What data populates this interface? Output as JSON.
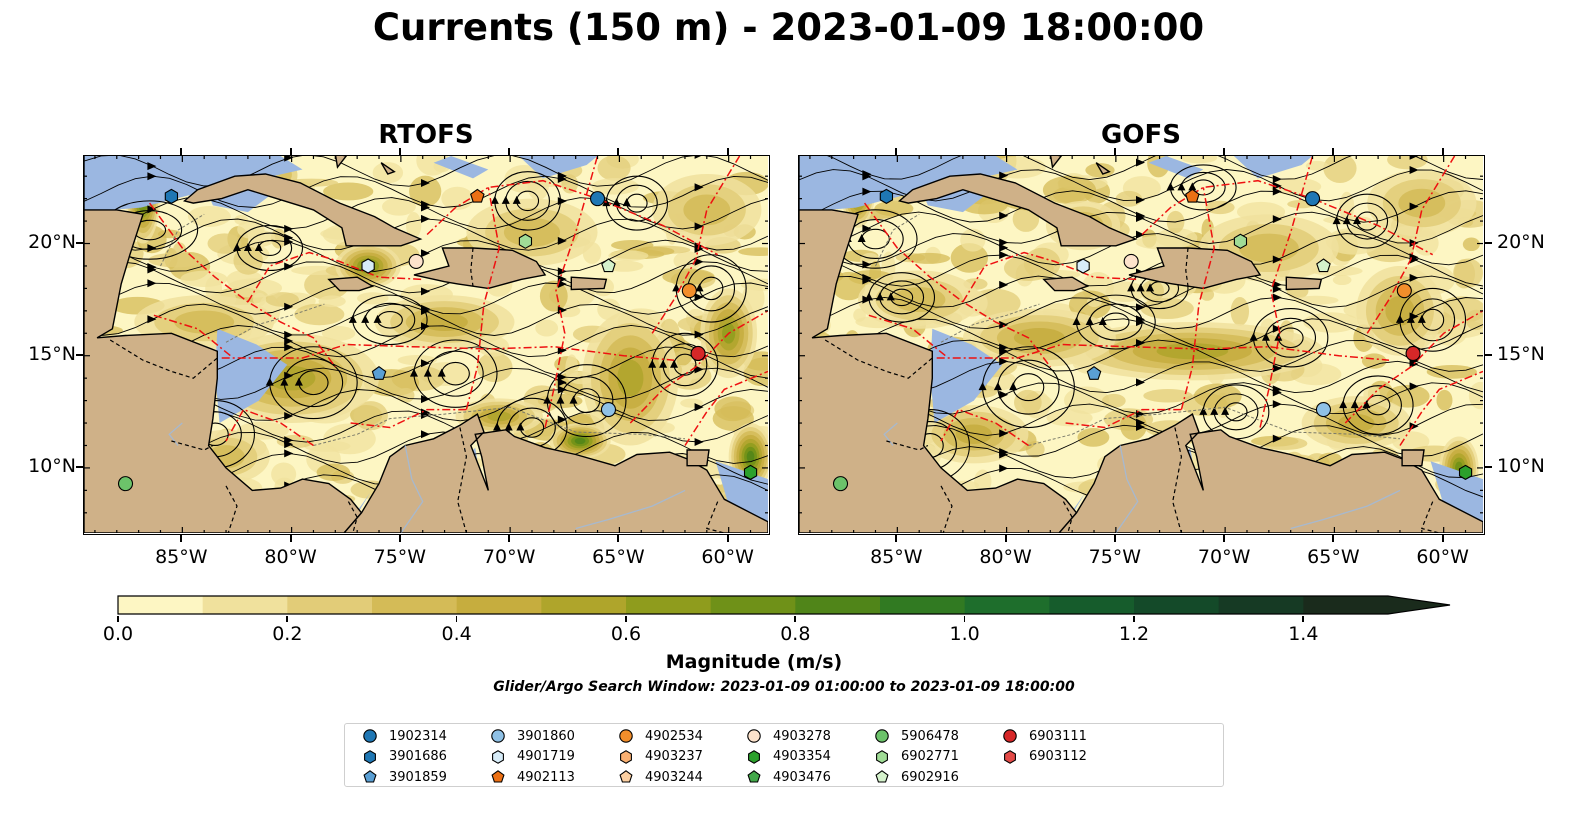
{
  "title": "Currents (150 m) - 2023-01-09 18:00:00",
  "panels": [
    {
      "title": "RTOFS"
    },
    {
      "title": "GOFS"
    }
  ],
  "axes": {
    "lon_labels": [
      "85°W",
      "80°W",
      "75°W",
      "70°W",
      "65°W",
      "60°W"
    ],
    "lat_labels": [
      "20°N",
      "15°N",
      "10°N"
    ],
    "lon_values": [
      -85,
      -80,
      -75,
      -70,
      -65,
      -60
    ],
    "lat_values": [
      20,
      15,
      10
    ],
    "lon_range": [
      -89.5,
      -58.2
    ],
    "lat_range": [
      7.1,
      23.9
    ]
  },
  "colorbar": {
    "label": "Magnitude (m/s)",
    "ticks": [
      "0.0",
      "0.2",
      "0.4",
      "0.6",
      "0.8",
      "1.0",
      "1.2",
      "1.4"
    ],
    "tick_values": [
      0.0,
      0.2,
      0.4,
      0.6,
      0.8,
      1.0,
      1.2,
      1.4
    ],
    "range": [
      0.0,
      1.5
    ],
    "extend": "max",
    "colors": [
      "#fdf6c3",
      "#f0e19d",
      "#e2cc78",
      "#d4bb57",
      "#c6ad3e",
      "#afa52b",
      "#8f9c1d",
      "#6f9118",
      "#508519",
      "#317a22",
      "#1e6e2c",
      "#165c2c",
      "#144a29",
      "#163a24",
      "#1a2b1c"
    ]
  },
  "search_window": "Glider/Argo Search Window: 2023-01-09 01:00:00 to 2023-01-09 18:00:00",
  "colors": {
    "land": "#cfb188",
    "ocean_shallow": "#9bb7e1",
    "eez_line": "#ee1111"
  },
  "legend": [
    {
      "id": "1902314",
      "color": "#1f77b4",
      "marker": "circle"
    },
    {
      "id": "3901686",
      "color": "#1f77b4",
      "marker": "hexagon"
    },
    {
      "id": "3901859",
      "color": "#5a9fd4",
      "marker": "pentagon"
    },
    {
      "id": "3901860",
      "color": "#8fc1e6",
      "marker": "circle"
    },
    {
      "id": "4901719",
      "color": "#d7ecf8",
      "marker": "hexagon"
    },
    {
      "id": "4902113",
      "color": "#ec7014",
      "marker": "pentagon"
    },
    {
      "id": "4902534",
      "color": "#f28e2b",
      "marker": "circle"
    },
    {
      "id": "4903237",
      "color": "#f9b072",
      "marker": "hexagon"
    },
    {
      "id": "4903244",
      "color": "#fdd0a2",
      "marker": "pentagon"
    },
    {
      "id": "4903278",
      "color": "#fde3cc",
      "marker": "circle"
    },
    {
      "id": "4903354",
      "color": "#2ca02c",
      "marker": "hexagon"
    },
    {
      "id": "4903476",
      "color": "#43a84a",
      "marker": "pentagon"
    },
    {
      "id": "5906478",
      "color": "#6cc36a",
      "marker": "circle"
    },
    {
      "id": "6902771",
      "color": "#a0dc96",
      "marker": "hexagon"
    },
    {
      "id": "6902916",
      "color": "#d5f2cc",
      "marker": "pentagon"
    },
    {
      "id": "6903111",
      "color": "#d62728",
      "marker": "circle"
    },
    {
      "id": "6903112",
      "color": "#e34a47",
      "marker": "hexagon"
    }
  ],
  "floats": [
    {
      "id": "1902314",
      "lon": -66.0,
      "lat": 22.0
    },
    {
      "id": "3901686",
      "lon": -85.5,
      "lat": 22.1
    },
    {
      "id": "3901859",
      "lon": -76.0,
      "lat": 14.2
    },
    {
      "id": "3901860",
      "lon": -65.5,
      "lat": 12.6
    },
    {
      "id": "4901719",
      "lon": -76.5,
      "lat": 19.0
    },
    {
      "id": "4902113",
      "lon": -71.5,
      "lat": 22.1
    },
    {
      "id": "4902534",
      "lon": -61.8,
      "lat": 17.9
    },
    {
      "id": "4903278",
      "lon": -74.3,
      "lat": 19.2
    },
    {
      "id": "4903354",
      "lon": -59.0,
      "lat": 9.8
    },
    {
      "id": "5906478",
      "lon": -87.6,
      "lat": 9.3
    },
    {
      "id": "6902771",
      "lon": -69.3,
      "lat": 20.1
    },
    {
      "id": "6902916",
      "lon": -65.5,
      "lat": 19.0
    },
    {
      "id": "6903111",
      "lon": -61.4,
      "lat": 15.1
    }
  ]
}
